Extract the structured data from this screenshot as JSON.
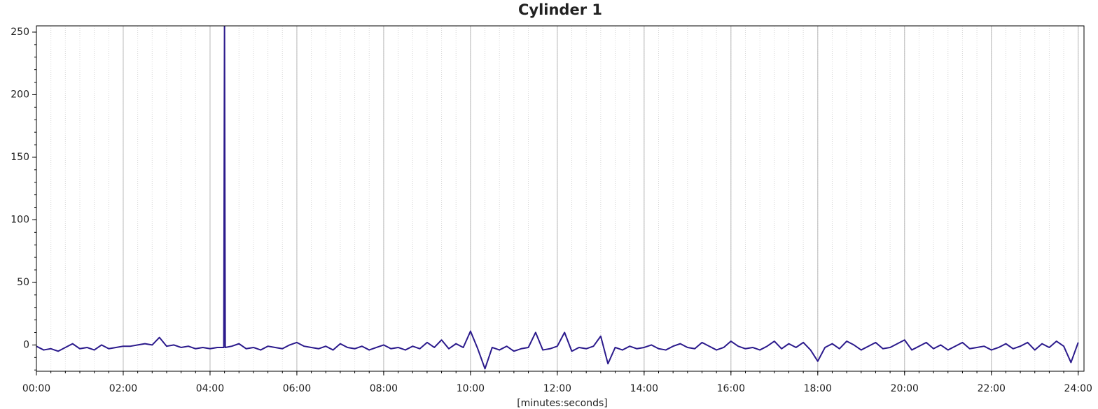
{
  "chart_data": {
    "type": "line",
    "title": "Cylinder 1",
    "x_label": "[minutes:seconds]",
    "xlim": [
      0,
      1448
    ],
    "ylim": [
      -21,
      255
    ],
    "xticks": [
      {
        "value": 0,
        "label": "00:00"
      },
      {
        "value": 120,
        "label": "02:00"
      },
      {
        "value": 240,
        "label": "04:00"
      },
      {
        "value": 360,
        "label": "06:00"
      },
      {
        "value": 480,
        "label": "08:00"
      },
      {
        "value": 600,
        "label": "10:00"
      },
      {
        "value": 720,
        "label": "12:00"
      },
      {
        "value": 840,
        "label": "14:00"
      },
      {
        "value": 960,
        "label": "16:00"
      },
      {
        "value": 1080,
        "label": "18:00"
      },
      {
        "value": 1200,
        "label": "20:00"
      },
      {
        "value": 1320,
        "label": "22:00"
      },
      {
        "value": 1440,
        "label": "24:00"
      }
    ],
    "yticks": [
      0,
      50,
      100,
      150,
      200,
      250
    ],
    "x_minor_step": 20,
    "y_minor_step": 10,
    "grid": true,
    "x": [
      0,
      10,
      20,
      30,
      40,
      50,
      60,
      70,
      80,
      90,
      100,
      110,
      120,
      130,
      140,
      150,
      160,
      170,
      180,
      190,
      200,
      210,
      220,
      230,
      240,
      250,
      259,
      260,
      261,
      270,
      280,
      290,
      300,
      310,
      320,
      330,
      340,
      350,
      360,
      370,
      380,
      390,
      400,
      410,
      420,
      430,
      440,
      450,
      460,
      470,
      480,
      490,
      500,
      510,
      520,
      530,
      540,
      550,
      560,
      570,
      580,
      590,
      600,
      610,
      620,
      630,
      640,
      650,
      660,
      670,
      680,
      690,
      700,
      710,
      720,
      730,
      740,
      750,
      760,
      770,
      780,
      790,
      800,
      810,
      820,
      830,
      840,
      850,
      860,
      870,
      880,
      890,
      900,
      910,
      920,
      930,
      940,
      950,
      960,
      970,
      980,
      990,
      1000,
      1010,
      1020,
      1030,
      1040,
      1050,
      1060,
      1070,
      1080,
      1090,
      1100,
      1110,
      1120,
      1130,
      1140,
      1150,
      1160,
      1170,
      1180,
      1190,
      1200,
      1210,
      1220,
      1230,
      1240,
      1250,
      1260,
      1270,
      1280,
      1290,
      1300,
      1310,
      1320,
      1330,
      1340,
      1350,
      1360,
      1370,
      1380,
      1390,
      1400,
      1410,
      1420,
      1430,
      1440
    ],
    "series": [
      {
        "name": "Cylinder 1",
        "color": "#2b1a8c",
        "values": [
          -1,
          -4,
          -3,
          -5,
          -2,
          1,
          -3,
          -2,
          -4,
          0,
          -3,
          -2,
          -1,
          -1,
          0,
          1,
          0,
          6,
          -1,
          0,
          -2,
          -1,
          -3,
          -2,
          -3,
          -2,
          -2,
          255,
          -2,
          -1,
          1,
          -3,
          -2,
          -4,
          -1,
          -2,
          -3,
          0,
          2,
          -1,
          -2,
          -3,
          -1,
          -4,
          1,
          -2,
          -3,
          -1,
          -4,
          -2,
          0,
          -3,
          -2,
          -4,
          -1,
          -3,
          2,
          -2,
          4,
          -3,
          1,
          -2,
          11,
          -3,
          -19,
          -2,
          -4,
          -1,
          -5,
          -3,
          -2,
          10,
          -4,
          -3,
          -1,
          10,
          -5,
          -2,
          -3,
          -1,
          7,
          -15,
          -2,
          -4,
          -1,
          -3,
          -2,
          0,
          -3,
          -4,
          -1,
          1,
          -2,
          -3,
          2,
          -1,
          -4,
          -2,
          3,
          -1,
          -3,
          -2,
          -4,
          -1,
          3,
          -3,
          1,
          -2,
          2,
          -4,
          -13,
          -2,
          1,
          -3,
          3,
          0,
          -4,
          -1,
          2,
          -3,
          -2,
          1,
          4,
          -4,
          -1,
          2,
          -3,
          0,
          -4,
          -1,
          2,
          -3,
          -2,
          -1,
          -4,
          -2,
          1,
          -3,
          -1,
          2,
          -4,
          1,
          -2,
          3,
          -1,
          -14,
          2
        ]
      }
    ]
  }
}
